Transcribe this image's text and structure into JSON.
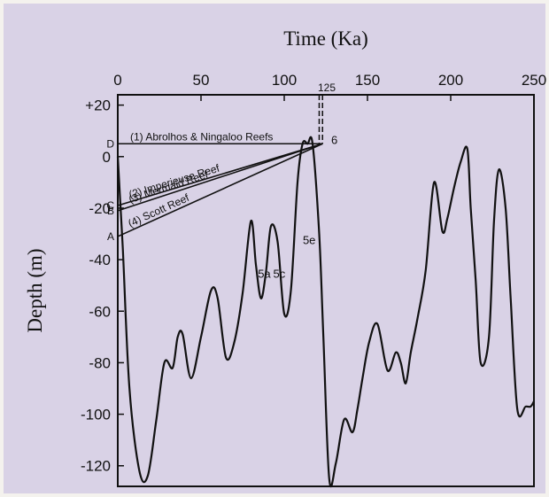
{
  "chart_data": {
    "type": "line",
    "title": "",
    "xlabel": "Time (Ka)",
    "ylabel": "Depth (m)",
    "xlim": [
      0,
      250
    ],
    "ylim": [
      -128,
      24
    ],
    "x_ticks": [
      {
        "value": 0,
        "label": "0"
      },
      {
        "value": 50,
        "label": "50"
      },
      {
        "value": 100,
        "label": "100"
      },
      {
        "value": 150,
        "label": "150"
      },
      {
        "value": 200,
        "label": "200"
      },
      {
        "value": 250,
        "label": "250"
      }
    ],
    "top_marker": {
      "value": 125,
      "label": "125"
    },
    "y_ticks": [
      {
        "value": 20,
        "label": "+20"
      },
      {
        "value": 0,
        "label": "0"
      },
      {
        "value": -20,
        "label": "-20"
      },
      {
        "value": -40,
        "label": "-40"
      },
      {
        "value": -60,
        "label": "-60"
      },
      {
        "value": -80,
        "label": "-80"
      },
      {
        "value": -100,
        "label": "-100"
      },
      {
        "value": -120,
        "label": "-120"
      }
    ],
    "grid": false,
    "series": [
      {
        "x": [
          0,
          3,
          7,
          13,
          18,
          23,
          28,
          33,
          36,
          39,
          44,
          50,
          56,
          60,
          65,
          70,
          75,
          80,
          83,
          86,
          89,
          92,
          96,
          100,
          104,
          108,
          111,
          114,
          117,
          121,
          123.5,
          127,
          131,
          136,
          141,
          144,
          147,
          151,
          156,
          162,
          167,
          170,
          173,
          176,
          180,
          185,
          190,
          195,
          198,
          202,
          206,
          210,
          212,
          215,
          218,
          223,
          226,
          229,
          233,
          236,
          240,
          245,
          248,
          250
        ],
        "y": [
          0,
          -35,
          -90,
          -122,
          -124,
          -103,
          -80,
          -82,
          -70,
          -69,
          -86,
          -70,
          -52,
          -55,
          -78,
          -72,
          -53,
          -25,
          -42,
          -55,
          -45,
          -27,
          -33,
          -61,
          -52,
          -10,
          5,
          5,
          5,
          -30,
          -70,
          -125,
          -119,
          -102,
          -107,
          -98,
          -86,
          -72,
          -65,
          -83,
          -76,
          -80,
          -88,
          -76,
          -63,
          -44,
          -10,
          -29,
          -24,
          -12,
          -2,
          3,
          -20,
          -48,
          -80,
          -70,
          -25,
          -5,
          -20,
          -55,
          -98,
          -97,
          -97,
          -95
        ]
      }
    ],
    "reef_lines": [
      {
        "label": "(1) Abrolhos & Ningaloo Reefs",
        "start_label": "D",
        "from": [
          0,
          5
        ],
        "to": [
          123,
          5
        ]
      },
      {
        "label": "(2) Imperieuse Reef",
        "start_label": "C",
        "from": [
          0,
          -19
        ],
        "to": [
          123,
          5
        ]
      },
      {
        "label": "(3) Mermaid Reef",
        "start_label": "B",
        "from": [
          0,
          -21
        ],
        "to": [
          123,
          5
        ]
      },
      {
        "label": "(4) Scott Reef",
        "start_label": "A",
        "from": [
          0,
          -31
        ],
        "to": [
          123,
          5
        ]
      }
    ],
    "annotations": [
      {
        "text": "6",
        "x": 125,
        "y": 5
      },
      {
        "text": "5e",
        "x": 115,
        "y": -34
      },
      {
        "text": "5c",
        "x": 97,
        "y": -47
      },
      {
        "text": "5a",
        "x": 88,
        "y": -47
      }
    ],
    "stage_guides": {
      "x_left": 121,
      "x_right": 123,
      "y_top": 24,
      "y_bottom": 5
    },
    "colors": {
      "background": "#d9d2e6",
      "line": "#111111"
    }
  }
}
